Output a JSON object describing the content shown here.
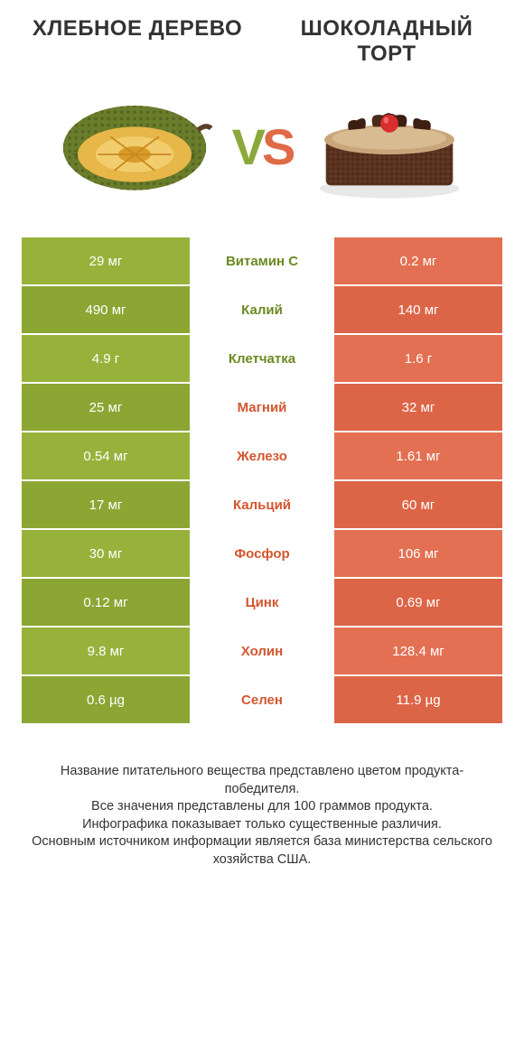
{
  "title_left": "ХЛЕБНОЕ ДЕРЕВО",
  "title_right": "ШОКОЛАДНЫЙ ТОРТ",
  "vs": {
    "v": "V",
    "s": "S"
  },
  "colors": {
    "left_bg": "#97b23b",
    "left_bg_alt": "#8ca634",
    "right_bg": "#e37052",
    "right_bg_alt": "#dd6547",
    "mid_left": "#6a8a1f",
    "mid_right": "#d3562f",
    "mid_bg": "#ffffff"
  },
  "rows": [
    {
      "nutrient": "Витамин C",
      "left": "29 мг",
      "right": "0.2 мг",
      "winner": "left"
    },
    {
      "nutrient": "Калий",
      "left": "490 мг",
      "right": "140 мг",
      "winner": "left"
    },
    {
      "nutrient": "Клетчатка",
      "left": "4.9 г",
      "right": "1.6 г",
      "winner": "left"
    },
    {
      "nutrient": "Магний",
      "left": "25 мг",
      "right": "32 мг",
      "winner": "right"
    },
    {
      "nutrient": "Железо",
      "left": "0.54 мг",
      "right": "1.61 мг",
      "winner": "right"
    },
    {
      "nutrient": "Кальций",
      "left": "17 мг",
      "right": "60 мг",
      "winner": "right"
    },
    {
      "nutrient": "Фосфор",
      "left": "30 мг",
      "right": "106 мг",
      "winner": "right"
    },
    {
      "nutrient": "Цинк",
      "left": "0.12 мг",
      "right": "0.69 мг",
      "winner": "right"
    },
    {
      "nutrient": "Холин",
      "left": "9.8 мг",
      "right": "128.4 мг",
      "winner": "right"
    },
    {
      "nutrient": "Селен",
      "left": "0.6 µg",
      "right": "11.9 µg",
      "winner": "right"
    }
  ],
  "footer": [
    "Название питательного вещества представлено цветом продукта-победителя.",
    "Все значения представлены для 100 граммов продукта.",
    "Инфографика показывает только существенные различия.",
    "Основным источником информации является база министерства сельского хозяйства США."
  ]
}
